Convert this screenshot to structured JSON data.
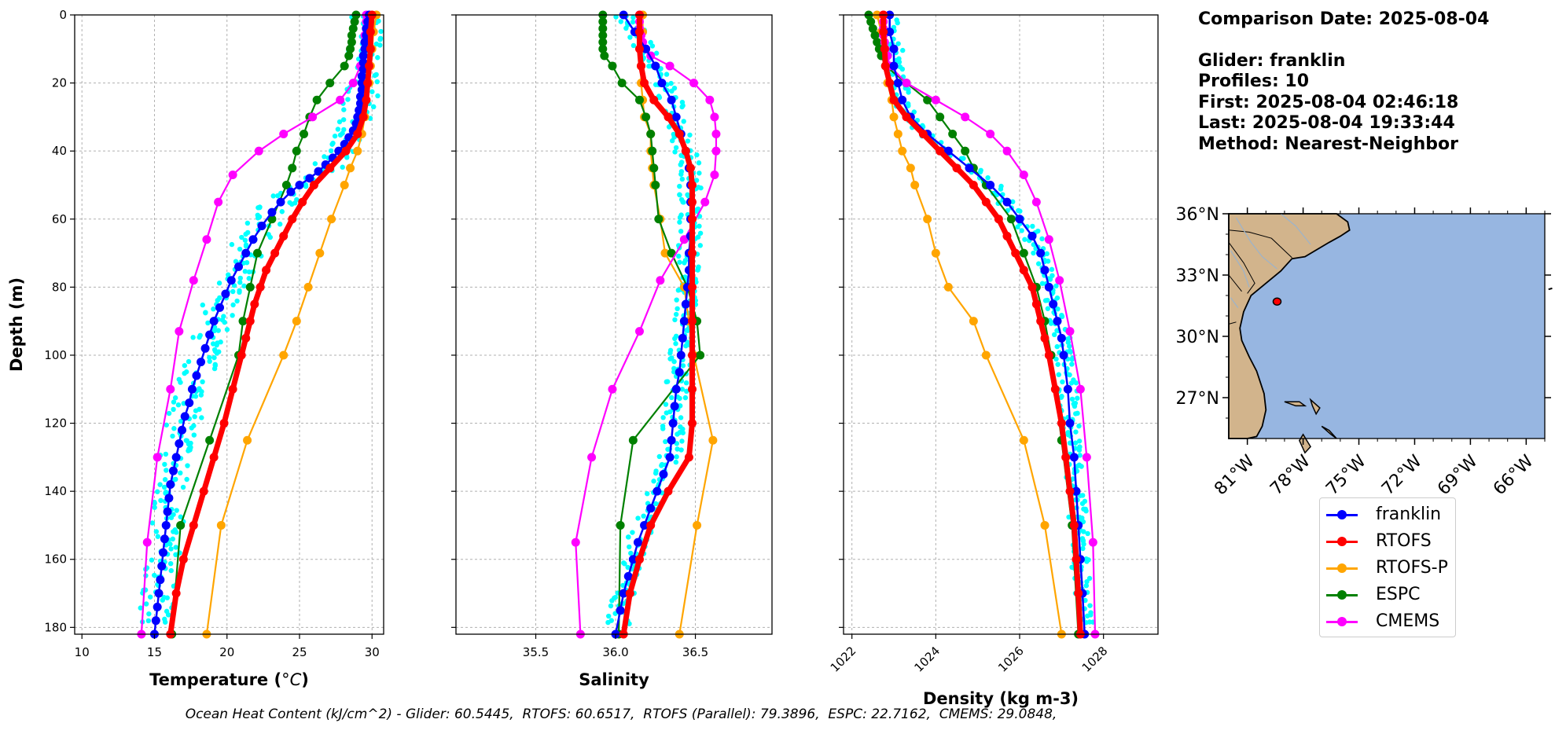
{
  "info": {
    "comparison_date": "Comparison Date: 2025-08-04",
    "glider": "Glider: franklin",
    "profiles": "Profiles: 10",
    "first": "First: 2025-08-04 02:46:18",
    "last": "Last: 2025-08-04 19:33:44",
    "method": "Method: Nearest-Neighbor"
  },
  "ohc_caption": "Ocean Heat Content (kJ/cm^2) - Glider: 60.5445,  RTOFS: 60.6517,  RTOFS (Parallel): 79.3896,  ESPC: 22.7162,  CMEMS: 29.0848,",
  "colors": {
    "franklin": "#0000ff",
    "RTOFS": "#ff0000",
    "RTOFS-P": "#ffa500",
    "ESPC": "#008000",
    "CMEMS": "#ff00ff",
    "glider_scatter": "#00ffff",
    "ocean": "#97b6e1",
    "land": "#d2b48c"
  },
  "legend": [
    "franklin",
    "RTOFS",
    "RTOFS-P",
    "ESPC",
    "CMEMS"
  ],
  "chart_data": [
    {
      "type": "line",
      "xlabel": "Temperature (°C)",
      "ylabel": "Depth (m)",
      "xlim": [
        9.5,
        30.8
      ],
      "ylim": [
        182,
        0
      ],
      "xticks": [
        "10",
        "15",
        "20",
        "25",
        "30"
      ],
      "yticks": [
        "0",
        "20",
        "40",
        "60",
        "80",
        "100",
        "120",
        "140",
        "160",
        "180"
      ],
      "grid": true,
      "series": [
        {
          "name": "franklin",
          "depth": [
            0,
            2,
            4,
            6,
            8,
            10,
            12,
            14,
            16,
            18,
            20,
            22,
            24,
            26,
            28,
            30,
            32,
            34,
            36,
            38,
            40,
            42,
            44,
            46,
            48,
            50,
            52,
            55,
            58,
            62,
            66,
            70,
            74,
            78,
            82,
            86,
            90,
            94,
            98,
            102,
            106,
            110,
            114,
            118,
            122,
            126,
            130,
            134,
            138,
            142,
            146,
            150,
            154,
            158,
            162,
            166,
            170,
            174,
            178,
            182
          ],
          "values": [
            29.8,
            29.7,
            29.6,
            29.6,
            29.5,
            29.5,
            29.4,
            29.4,
            29.4,
            29.3,
            29.3,
            29.3,
            29.2,
            29.2,
            29.1,
            29.0,
            28.9,
            28.7,
            28.4,
            28.1,
            27.7,
            27.3,
            26.8,
            26.3,
            25.7,
            25.0,
            24.4,
            23.7,
            23.1,
            22.4,
            21.8,
            21.3,
            20.8,
            20.3,
            19.9,
            19.5,
            19.1,
            18.8,
            18.5,
            18.2,
            17.9,
            17.6,
            17.4,
            17.1,
            16.9,
            16.7,
            16.5,
            16.3,
            16.1,
            16.0,
            15.9,
            15.8,
            15.7,
            15.6,
            15.5,
            15.4,
            15.3,
            15.2,
            15.1,
            15.0
          ]
        },
        {
          "name": "RTOFS",
          "depth": [
            0,
            5,
            10,
            15,
            20,
            25,
            30,
            35,
            40,
            45,
            50,
            55,
            60,
            65,
            70,
            75,
            80,
            85,
            90,
            95,
            100,
            110,
            120,
            130,
            140,
            150,
            160,
            170,
            182
          ],
          "values": [
            30.0,
            29.9,
            29.9,
            29.8,
            29.7,
            29.6,
            29.4,
            29.0,
            28.2,
            27.1,
            26.0,
            25.2,
            24.5,
            23.9,
            23.3,
            22.7,
            22.3,
            21.9,
            21.6,
            21.3,
            21.0,
            20.4,
            19.8,
            19.1,
            18.4,
            17.7,
            17.0,
            16.5,
            16.1
          ]
        },
        {
          "name": "RTOFS-P",
          "depth": [
            0,
            5,
            10,
            15,
            20,
            25,
            30,
            35,
            40,
            45,
            50,
            60,
            70,
            80,
            90,
            100,
            125,
            150,
            182
          ],
          "values": [
            30.3,
            30.1,
            30.0,
            29.9,
            29.8,
            29.6,
            29.5,
            29.3,
            29.0,
            28.5,
            28.1,
            27.2,
            26.4,
            25.6,
            24.8,
            23.9,
            21.4,
            19.6,
            18.6
          ]
        },
        {
          "name": "ESPC",
          "depth": [
            0,
            2,
            4,
            6,
            8,
            10,
            12,
            15,
            20,
            25,
            30,
            35,
            40,
            45,
            50,
            60,
            70,
            80,
            90,
            100,
            125,
            150,
            182
          ],
          "values": [
            28.9,
            28.8,
            28.7,
            28.6,
            28.6,
            28.5,
            28.4,
            28.1,
            27.1,
            26.2,
            25.7,
            25.3,
            24.8,
            24.5,
            24.1,
            23.1,
            22.1,
            21.6,
            21.1,
            20.8,
            18.8,
            16.8,
            16.2
          ]
        },
        {
          "name": "CMEMS",
          "depth": [
            0,
            2,
            4,
            6,
            8,
            10,
            12,
            15,
            20,
            25,
            30,
            35,
            40,
            47,
            55,
            66,
            78,
            93,
            110,
            130,
            155,
            182
          ],
          "values": [
            29.6,
            29.6,
            29.6,
            29.5,
            29.5,
            29.5,
            29.4,
            29.2,
            28.7,
            27.8,
            25.9,
            23.9,
            22.2,
            20.4,
            19.4,
            18.6,
            17.7,
            16.7,
            16.1,
            15.2,
            14.5,
            14.1
          ]
        }
      ]
    },
    {
      "type": "line",
      "xlabel": "Salinity",
      "xlim": [
        35.0,
        36.98
      ],
      "ylim": [
        182,
        0
      ],
      "xticks": [
        "35.5",
        "36.0",
        "36.5"
      ],
      "grid": true,
      "series": [
        {
          "name": "franklin",
          "depth": [
            0,
            5,
            10,
            15,
            20,
            25,
            30,
            35,
            40,
            45,
            50,
            55,
            60,
            65,
            70,
            75,
            80,
            85,
            90,
            95,
            100,
            105,
            110,
            115,
            120,
            125,
            130,
            135,
            140,
            145,
            150,
            155,
            160,
            165,
            170,
            175,
            182
          ],
          "values": [
            36.05,
            36.12,
            36.19,
            36.25,
            36.29,
            36.35,
            36.38,
            36.41,
            36.44,
            36.46,
            36.47,
            36.47,
            36.47,
            36.47,
            36.46,
            36.46,
            36.45,
            36.44,
            36.43,
            36.42,
            36.41,
            36.4,
            36.38,
            36.37,
            36.36,
            36.35,
            36.34,
            36.3,
            36.26,
            36.22,
            36.18,
            36.14,
            36.11,
            36.08,
            36.05,
            36.03,
            36.0
          ]
        },
        {
          "name": "RTOFS",
          "depth": [
            0,
            5,
            10,
            15,
            20,
            25,
            30,
            35,
            40,
            45,
            50,
            55,
            60,
            70,
            80,
            90,
            100,
            110,
            120,
            130,
            140,
            150,
            160,
            170,
            182
          ],
          "values": [
            36.15,
            36.15,
            36.15,
            36.16,
            36.18,
            36.24,
            36.33,
            36.4,
            36.44,
            36.47,
            36.48,
            36.48,
            36.48,
            36.48,
            36.48,
            36.48,
            36.48,
            36.48,
            36.48,
            36.46,
            36.33,
            36.22,
            36.15,
            36.09,
            36.05
          ]
        },
        {
          "name": "RTOFS-P",
          "depth": [
            0,
            5,
            10,
            15,
            20,
            25,
            30,
            35,
            40,
            45,
            50,
            60,
            70,
            80,
            90,
            100,
            125,
            150,
            182
          ],
          "values": [
            36.17,
            36.17,
            36.16,
            36.16,
            36.16,
            36.17,
            36.18,
            36.22,
            36.22,
            36.23,
            36.24,
            36.28,
            36.31,
            36.43,
            36.46,
            36.49,
            36.61,
            36.51,
            36.4
          ]
        },
        {
          "name": "ESPC",
          "depth": [
            0,
            2,
            4,
            6,
            8,
            10,
            12,
            15,
            20,
            25,
            30,
            35,
            40,
            45,
            50,
            60,
            70,
            80,
            90,
            100,
            125,
            150,
            182
          ],
          "values": [
            35.92,
            35.92,
            35.92,
            35.92,
            35.92,
            35.92,
            35.93,
            35.98,
            36.04,
            36.15,
            36.19,
            36.22,
            36.23,
            36.24,
            36.25,
            36.27,
            36.35,
            36.45,
            36.51,
            36.53,
            36.11,
            36.03,
            36.02
          ]
        },
        {
          "name": "CMEMS",
          "depth": [
            0,
            2,
            4,
            6,
            8,
            10,
            12,
            15,
            20,
            25,
            30,
            35,
            40,
            47,
            55,
            66,
            78,
            93,
            110,
            130,
            155,
            182
          ],
          "values": [
            36.15,
            36.15,
            36.15,
            36.16,
            36.17,
            36.19,
            36.22,
            36.34,
            36.49,
            36.59,
            36.62,
            36.63,
            36.63,
            36.62,
            36.56,
            36.43,
            36.28,
            36.15,
            35.98,
            35.85,
            35.75,
            35.78
          ]
        }
      ]
    },
    {
      "type": "line",
      "xlabel": "Density (kg m-3)",
      "xlim": [
        1021.8,
        1029.3
      ],
      "ylim": [
        182,
        0
      ],
      "xticks": [
        "1022",
        "1024",
        "1026",
        "1028"
      ],
      "grid": true,
      "series": [
        {
          "name": "franklin",
          "depth": [
            0,
            5,
            10,
            15,
            20,
            25,
            30,
            35,
            40,
            45,
            50,
            55,
            60,
            65,
            70,
            75,
            80,
            85,
            90,
            95,
            100,
            110,
            120,
            130,
            140,
            150,
            160,
            170,
            182
          ],
          "values": [
            1022.9,
            1022.9,
            1023.0,
            1023.0,
            1023.1,
            1023.2,
            1023.4,
            1023.8,
            1024.3,
            1024.8,
            1025.3,
            1025.7,
            1026.0,
            1026.3,
            1026.5,
            1026.6,
            1026.7,
            1026.8,
            1026.9,
            1027.0,
            1027.05,
            1027.15,
            1027.2,
            1027.3,
            1027.35,
            1027.4,
            1027.45,
            1027.5,
            1027.55
          ]
        },
        {
          "name": "RTOFS",
          "depth": [
            0,
            5,
            10,
            15,
            20,
            25,
            30,
            35,
            40,
            45,
            50,
            55,
            60,
            65,
            70,
            75,
            80,
            85,
            90,
            95,
            100,
            110,
            120,
            130,
            140,
            150,
            160,
            170,
            182
          ],
          "values": [
            1022.75,
            1022.75,
            1022.78,
            1022.8,
            1022.9,
            1023.0,
            1023.3,
            1023.7,
            1024.1,
            1024.5,
            1024.9,
            1025.2,
            1025.5,
            1025.7,
            1025.9,
            1026.1,
            1026.3,
            1026.4,
            1026.5,
            1026.6,
            1026.7,
            1026.85,
            1027.0,
            1027.1,
            1027.2,
            1027.3,
            1027.35,
            1027.4,
            1027.45
          ]
        },
        {
          "name": "RTOFS-P",
          "depth": [
            0,
            5,
            10,
            15,
            20,
            25,
            30,
            35,
            40,
            45,
            50,
            60,
            70,
            80,
            90,
            100,
            125,
            150,
            182
          ],
          "values": [
            1022.6,
            1022.7,
            1022.75,
            1022.8,
            1022.85,
            1022.95,
            1023.0,
            1023.1,
            1023.2,
            1023.4,
            1023.5,
            1023.8,
            1024.0,
            1024.3,
            1024.9,
            1025.2,
            1026.1,
            1026.6,
            1027.0
          ]
        },
        {
          "name": "ESPC",
          "depth": [
            0,
            2,
            4,
            6,
            8,
            10,
            12,
            15,
            20,
            25,
            30,
            35,
            40,
            45,
            50,
            60,
            70,
            80,
            90,
            100,
            125,
            150,
            182
          ],
          "values": [
            1022.4,
            1022.45,
            1022.5,
            1022.55,
            1022.6,
            1022.65,
            1022.7,
            1022.8,
            1023.3,
            1023.8,
            1024.1,
            1024.4,
            1024.7,
            1024.9,
            1025.2,
            1025.8,
            1026.1,
            1026.4,
            1026.6,
            1026.75,
            1027.0,
            1027.25,
            1027.4
          ]
        },
        {
          "name": "CMEMS",
          "depth": [
            0,
            2,
            4,
            6,
            8,
            10,
            12,
            15,
            20,
            25,
            30,
            35,
            40,
            47,
            55,
            66,
            78,
            93,
            110,
            130,
            155,
            182
          ],
          "values": [
            1022.75,
            1022.75,
            1022.75,
            1022.75,
            1022.78,
            1022.8,
            1022.85,
            1022.9,
            1023.3,
            1024.0,
            1024.7,
            1025.3,
            1025.7,
            1026.1,
            1026.4,
            1026.7,
            1026.95,
            1027.2,
            1027.45,
            1027.6,
            1027.75,
            1027.8
          ]
        }
      ]
    }
  ],
  "map": {
    "lat_labels": [
      "36°N",
      "33°N",
      "30°N",
      "27°N"
    ],
    "lon_labels": [
      "81°W",
      "78°W",
      "75°W",
      "72°W",
      "69°W",
      "66°W"
    ],
    "lat_values": [
      36,
      33,
      30,
      27
    ],
    "lon_values": [
      -81,
      -78,
      -75,
      -72,
      -69,
      -66
    ],
    "extent": {
      "lon_min": -82,
      "lon_max": -65,
      "lat_min": 25,
      "lat_max": 36
    },
    "glider_location": {
      "lon": -79.4,
      "lat": 31.7
    }
  }
}
